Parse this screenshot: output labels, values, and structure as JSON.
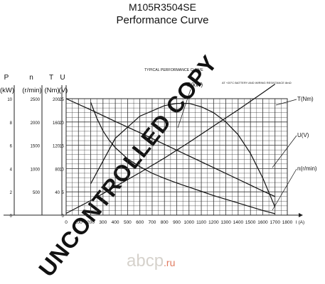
{
  "header": {
    "model": "M105R3504SE",
    "subtitle": "Performance Curve"
  },
  "watermark": {
    "text": "UNCONTROLLED COPY",
    "brand": "abcp",
    "brand_suffix": ".ru"
  },
  "chart_data": {
    "type": "line",
    "title": "TYPICAL PERFORMANCE CURVE",
    "note": "AT +20°C  BATTERY AND WIRING RESISTANCE 8mΩ",
    "xlabel": "I (A)",
    "x_ticks": [
      "0",
      "100",
      "200",
      "300",
      "400",
      "500",
      "600",
      "700",
      "800",
      "900",
      "1000",
      "1100",
      "1200",
      "1300",
      "1400",
      "1500",
      "1600",
      "1700",
      "1800"
    ],
    "xlim": [
      0,
      1800
    ],
    "y_axes": [
      {
        "label_top": "P",
        "label_bottom": "(kW)",
        "ticks": [
          "10",
          "8",
          "6",
          "4",
          "2",
          "0"
        ],
        "range": [
          0,
          10
        ]
      },
      {
        "label_top": "n",
        "label_bottom": "(r/min)",
        "ticks": [
          "2500",
          "2000",
          "1500",
          "1000",
          "500"
        ],
        "range": [
          0,
          2500
        ]
      },
      {
        "label_top": "T",
        "label_bottom": "(Nm)",
        "ticks": [
          "200",
          "160",
          "120",
          "80",
          "40"
        ],
        "range": [
          0,
          200
        ]
      },
      {
        "label_top": "U",
        "label_bottom": "(V)",
        "ticks": [
          "25",
          "20",
          "15",
          "10",
          "5",
          "0"
        ],
        "range": [
          0,
          25
        ]
      }
    ],
    "series": [
      {
        "name": "P(kW)",
        "x": [
          200,
          400,
          600,
          800,
          900,
          1000,
          1100,
          1200,
          1300,
          1400,
          1500,
          1600,
          1700
        ],
        "y": [
          2.7,
          6.6,
          8.5,
          9.4,
          9.6,
          9.6,
          9.3,
          8.8,
          8.0,
          6.9,
          5.3,
          3.2,
          0.7
        ]
      },
      {
        "name": "T(Nm)",
        "x": [
          0,
          200,
          400,
          600,
          800,
          1000,
          1200,
          1400,
          1600,
          1700
        ],
        "y": [
          3,
          25,
          49,
          73,
          98,
          125,
          153,
          181,
          210,
          225
        ]
      },
      {
        "name": "U(V)",
        "x": [
          0,
          200,
          400,
          600,
          800,
          1000,
          1200,
          1400,
          1600,
          1700
        ],
        "y": [
          25,
          22.6,
          20.1,
          17.7,
          15.2,
          12.7,
          10.2,
          7.7,
          5.2,
          4
        ]
      },
      {
        "name": "n(r/min)",
        "x": [
          200,
          250,
          300,
          350,
          400,
          500,
          600,
          700,
          800,
          900,
          1000,
          1100,
          1200,
          1300,
          1400,
          1500,
          1600,
          1700
        ],
        "y": [
          2420,
          2080,
          1810,
          1610,
          1450,
          1210,
          1040,
          900,
          790,
          690,
          600,
          510,
          420,
          340,
          260,
          180,
          100,
          30
        ]
      }
    ],
    "grid": true,
    "legend": "labels at line ends"
  }
}
